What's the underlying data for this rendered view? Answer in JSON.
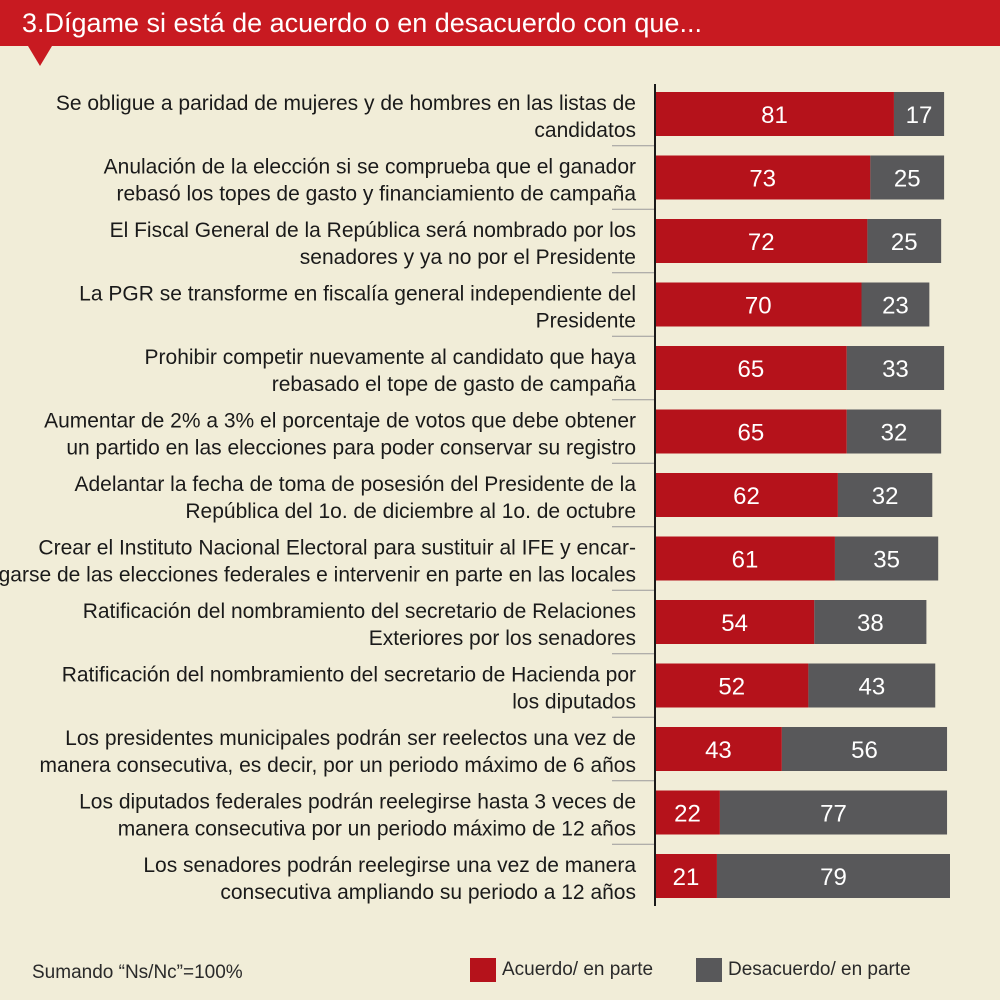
{
  "header": {
    "title": "3.Dígame si está de acuerdo o en desacuerdo con que..."
  },
  "footnote": "Sumando “Ns/Nc”=100%",
  "colors": {
    "header": "#c81a21",
    "acuerdo": "#b5121b",
    "desacuerdo": "#58585a",
    "background": "#f1edd8"
  },
  "chart_data": {
    "type": "bar",
    "orientation": "horizontal",
    "stacked": true,
    "categories": [
      [
        "Se obligue a paridad de mujeres y de hombres en las listas de",
        "candidatos"
      ],
      [
        "Anulación de la elección si se comprueba que el ganador",
        "rebasó los topes de gasto y financiamiento de campaña"
      ],
      [
        "El Fiscal General de la República será nombrado por los",
        "senadores y ya no por el Presidente"
      ],
      [
        "La PGR se transforme en fiscalía general independiente del",
        "Presidente"
      ],
      [
        "Prohibir competir nuevamente al candidato que haya",
        "rebasado el tope de gasto de campaña"
      ],
      [
        "Aumentar de 2% a 3%  el porcentaje de votos que debe obtener",
        "un partido en las elecciones para poder conservar su registro"
      ],
      [
        "Adelantar la fecha de toma de posesión del Presidente de la",
        "República del 1o. de diciembre al 1o. de octubre"
      ],
      [
        "Crear el Instituto Nacional Electoral para sustituir al IFE y encar-",
        "garse de las elecciones federales e intervenir en parte en las locales"
      ],
      [
        "Ratificación del nombramiento del secretario de Relaciones",
        "Exteriores por los senadores"
      ],
      [
        "Ratificación del nombramiento del secretario de Hacienda por",
        "los diputados"
      ],
      [
        "Los presidentes municipales podrán ser reelectos una vez de",
        "manera consecutiva, es decir, por un periodo máximo de 6 años"
      ],
      [
        "Los diputados federales podrán reelegirse hasta 3 veces de",
        "manera consecutiva por un periodo máximo de 12 años"
      ],
      [
        "Los senadores podrán reelegirse una vez de manera",
        "consecutiva ampliando su periodo a 12 años"
      ]
    ],
    "series": [
      {
        "name": "Acuerdo/ en parte",
        "color": "#b5121b",
        "values": [
          81,
          73,
          72,
          70,
          65,
          65,
          62,
          61,
          54,
          52,
          43,
          22,
          21
        ]
      },
      {
        "name": "Desacuerdo/ en parte",
        "color": "#58585a",
        "values": [
          17,
          25,
          25,
          23,
          33,
          32,
          32,
          35,
          38,
          43,
          56,
          77,
          79
        ]
      }
    ],
    "xlim": [
      0,
      100
    ],
    "legend_position": "bottom-right"
  }
}
